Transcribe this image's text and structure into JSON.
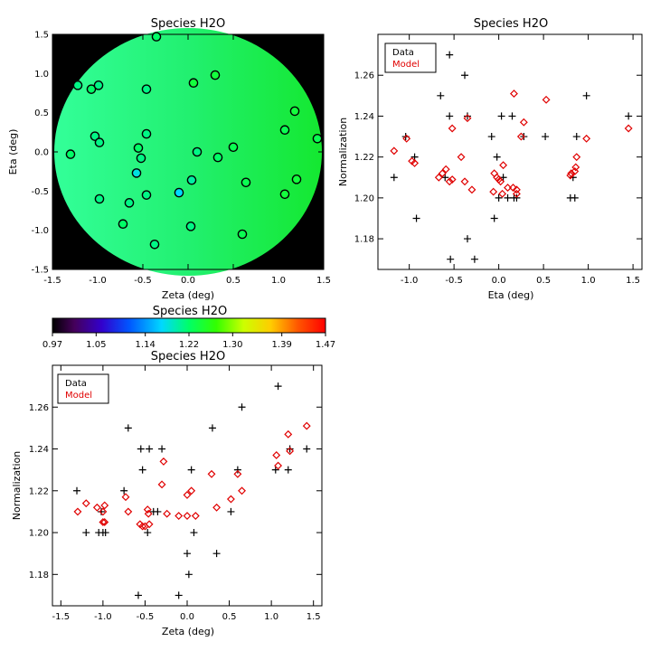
{
  "chart_data": [
    {
      "type": "scatter",
      "title": "Species H2O",
      "xlabel": "Zeta (deg)",
      "ylabel": "Eta (deg)",
      "xlim": [
        -1.5,
        1.5
      ],
      "ylim": [
        -1.5,
        1.5
      ],
      "xticks": [
        "-1.5",
        "-1.0",
        "-0.5",
        "0.0",
        "0.5",
        "1.0",
        "1.5"
      ],
      "yticks": [
        "-1.5",
        "-1.0",
        "-0.5",
        "0.0",
        "0.5",
        "1.0",
        "1.5"
      ],
      "map_value_range": [
        1.18,
        1.26
      ],
      "points": [
        {
          "x": -0.35,
          "y": 1.47,
          "v": 1.22
        },
        {
          "x": -1.22,
          "y": 0.85,
          "v": 1.21
        },
        {
          "x": -1.07,
          "y": 0.8,
          "v": 1.22
        },
        {
          "x": -0.99,
          "y": 0.85,
          "v": 1.21
        },
        {
          "x": -0.46,
          "y": 0.8,
          "v": 1.21
        },
        {
          "x": 0.06,
          "y": 0.88,
          "v": 1.24
        },
        {
          "x": 0.3,
          "y": 0.98,
          "v": 1.24
        },
        {
          "x": 1.18,
          "y": 0.52,
          "v": 1.24
        },
        {
          "x": 1.07,
          "y": 0.28,
          "v": 1.23
        },
        {
          "x": 1.43,
          "y": 0.17,
          "v": 1.23
        },
        {
          "x": -1.03,
          "y": 0.2,
          "v": 1.21
        },
        {
          "x": -0.98,
          "y": 0.12,
          "v": 1.21
        },
        {
          "x": -0.46,
          "y": 0.23,
          "v": 1.21
        },
        {
          "x": -0.55,
          "y": 0.05,
          "v": 1.22
        },
        {
          "x": -1.3,
          "y": -0.03,
          "v": 1.22
        },
        {
          "x": -0.52,
          "y": -0.08,
          "v": 1.21
        },
        {
          "x": 0.1,
          "y": 0.0,
          "v": 1.21
        },
        {
          "x": 0.33,
          "y": -0.07,
          "v": 1.22
        },
        {
          "x": 0.5,
          "y": 0.06,
          "v": 1.23
        },
        {
          "x": -0.57,
          "y": -0.27,
          "v": 1.18
        },
        {
          "x": 0.04,
          "y": -0.36,
          "v": 1.2
        },
        {
          "x": 0.64,
          "y": -0.39,
          "v": 1.23
        },
        {
          "x": 1.2,
          "y": -0.35,
          "v": 1.24
        },
        {
          "x": 1.07,
          "y": -0.54,
          "v": 1.24
        },
        {
          "x": -0.46,
          "y": -0.55,
          "v": 1.21
        },
        {
          "x": -0.1,
          "y": -0.52,
          "v": 1.17
        },
        {
          "x": -0.98,
          "y": -0.6,
          "v": 1.21
        },
        {
          "x": -0.65,
          "y": -0.65,
          "v": 1.21
        },
        {
          "x": -0.72,
          "y": -0.92,
          "v": 1.22
        },
        {
          "x": 0.03,
          "y": -0.95,
          "v": 1.21
        },
        {
          "x": 0.6,
          "y": -1.05,
          "v": 1.23
        },
        {
          "x": -0.37,
          "y": -1.18,
          "v": 1.21
        }
      ]
    },
    {
      "type": "scatter",
      "title": "Species H2O",
      "xlabel": "Eta (deg)",
      "ylabel": "Normalization",
      "xlim": [
        -1.35,
        1.6
      ],
      "ylim": [
        1.165,
        1.28
      ],
      "xticks": [
        "-1.0",
        "-0.5",
        "0.0",
        "0.5",
        "1.0",
        "1.5"
      ],
      "yticks": [
        "1.18",
        "1.20",
        "1.22",
        "1.24",
        "1.26"
      ],
      "legend": {
        "position": "top-left",
        "entries": [
          "Data",
          "Model"
        ]
      },
      "series": [
        {
          "name": "Data",
          "marker": "plus",
          "points": [
            [
              -1.17,
              1.21
            ],
            [
              -1.04,
              1.23
            ],
            [
              -0.94,
              1.22
            ],
            [
              -0.92,
              1.19
            ],
            [
              -0.65,
              1.25
            ],
            [
              -0.6,
              1.21
            ],
            [
              -0.55,
              1.24
            ],
            [
              -0.55,
              1.27
            ],
            [
              -0.54,
              1.17
            ],
            [
              -0.38,
              1.26
            ],
            [
              -0.35,
              1.24
            ],
            [
              -0.35,
              1.18
            ],
            [
              -0.27,
              1.17
            ],
            [
              -0.08,
              1.23
            ],
            [
              -0.05,
              1.19
            ],
            [
              -0.02,
              1.22
            ],
            [
              0.0,
              1.2
            ],
            [
              0.03,
              1.24
            ],
            [
              0.05,
              1.21
            ],
            [
              0.1,
              1.2
            ],
            [
              0.15,
              1.24
            ],
            [
              0.17,
              1.2
            ],
            [
              0.2,
              1.2
            ],
            [
              0.28,
              1.23
            ],
            [
              0.52,
              1.23
            ],
            [
              0.8,
              1.2
            ],
            [
              0.83,
              1.21
            ],
            [
              0.85,
              1.2
            ],
            [
              0.87,
              1.23
            ],
            [
              0.98,
              1.25
            ],
            [
              1.45,
              1.24
            ]
          ]
        },
        {
          "name": "Model",
          "marker": "diamond",
          "points": [
            [
              -1.17,
              1.223
            ],
            [
              -1.03,
              1.229
            ],
            [
              -0.97,
              1.218
            ],
            [
              -0.94,
              1.217
            ],
            [
              -0.67,
              1.21
            ],
            [
              -0.63,
              1.212
            ],
            [
              -0.59,
              1.214
            ],
            [
              -0.55,
              1.208
            ],
            [
              -0.52,
              1.209
            ],
            [
              -0.52,
              1.234
            ],
            [
              -0.42,
              1.22
            ],
            [
              -0.38,
              1.208
            ],
            [
              -0.35,
              1.239
            ],
            [
              -0.3,
              1.204
            ],
            [
              -0.06,
              1.203
            ],
            [
              -0.05,
              1.212
            ],
            [
              -0.02,
              1.21
            ],
            [
              0.0,
              1.209
            ],
            [
              0.02,
              1.208
            ],
            [
              0.04,
              1.202
            ],
            [
              0.05,
              1.216
            ],
            [
              0.1,
              1.205
            ],
            [
              0.16,
              1.205
            ],
            [
              0.17,
              1.251
            ],
            [
              0.2,
              1.204
            ],
            [
              0.2,
              1.202
            ],
            [
              0.25,
              1.23
            ],
            [
              0.28,
              1.237
            ],
            [
              0.53,
              1.248
            ],
            [
              0.8,
              1.211
            ],
            [
              0.81,
              1.212
            ],
            [
              0.85,
              1.213
            ],
            [
              0.86,
              1.215
            ],
            [
              0.87,
              1.22
            ],
            [
              0.98,
              1.229
            ],
            [
              1.45,
              1.234
            ]
          ]
        }
      ]
    },
    {
      "type": "colorbar",
      "title": "Species H2O",
      "tick_labels": [
        "0.97",
        "1.05",
        "1.14",
        "1.22",
        "1.30",
        "1.39",
        "1.47"
      ],
      "range": [
        0.97,
        1.47
      ]
    },
    {
      "type": "scatter",
      "title": "Species H2O",
      "xlabel": "Zeta (deg)",
      "ylabel": "Normalization",
      "xlim": [
        -1.6,
        1.6
      ],
      "ylim": [
        1.165,
        1.28
      ],
      "xticks": [
        "-1.5",
        "-1.0",
        "-0.5",
        "0.0",
        "0.5",
        "1.0",
        "1.5"
      ],
      "yticks": [
        "1.18",
        "1.20",
        "1.22",
        "1.24",
        "1.26"
      ],
      "legend": {
        "position": "top-left",
        "entries": [
          "Data",
          "Model"
        ]
      },
      "series": [
        {
          "name": "Data",
          "marker": "plus",
          "points": [
            [
              -1.31,
              1.22
            ],
            [
              -1.2,
              1.2
            ],
            [
              -1.05,
              1.2
            ],
            [
              -1.02,
              1.21
            ],
            [
              -1.0,
              1.2
            ],
            [
              -0.97,
              1.2
            ],
            [
              -0.75,
              1.22
            ],
            [
              -0.7,
              1.25
            ],
            [
              -0.58,
              1.17
            ],
            [
              -0.55,
              1.24
            ],
            [
              -0.53,
              1.23
            ],
            [
              -0.47,
              1.2
            ],
            [
              -0.45,
              1.24
            ],
            [
              -0.4,
              1.21
            ],
            [
              -0.35,
              1.21
            ],
            [
              -0.3,
              1.24
            ],
            [
              -0.1,
              1.17
            ],
            [
              0.0,
              1.19
            ],
            [
              0.02,
              1.18
            ],
            [
              0.05,
              1.23
            ],
            [
              0.08,
              1.2
            ],
            [
              0.3,
              1.25
            ],
            [
              0.35,
              1.19
            ],
            [
              0.52,
              1.21
            ],
            [
              0.6,
              1.23
            ],
            [
              0.65,
              1.26
            ],
            [
              1.05,
              1.23
            ],
            [
              1.08,
              1.27
            ],
            [
              1.2,
              1.23
            ],
            [
              1.22,
              1.24
            ],
            [
              1.42,
              1.24
            ]
          ]
        },
        {
          "name": "Model",
          "marker": "diamond",
          "points": [
            [
              -1.3,
              1.21
            ],
            [
              -1.2,
              1.214
            ],
            [
              -1.07,
              1.212
            ],
            [
              -1.0,
              1.21
            ],
            [
              -1.0,
              1.205
            ],
            [
              -0.98,
              1.213
            ],
            [
              -0.98,
              1.205
            ],
            [
              -0.73,
              1.217
            ],
            [
              -0.7,
              1.21
            ],
            [
              -0.56,
              1.204
            ],
            [
              -0.53,
              1.203
            ],
            [
              -0.5,
              1.203
            ],
            [
              -0.47,
              1.211
            ],
            [
              -0.46,
              1.209
            ],
            [
              -0.45,
              1.204
            ],
            [
              -0.3,
              1.223
            ],
            [
              -0.28,
              1.234
            ],
            [
              -0.24,
              1.209
            ],
            [
              -0.1,
              1.208
            ],
            [
              0.0,
              1.218
            ],
            [
              0.0,
              1.208
            ],
            [
              0.05,
              1.22
            ],
            [
              0.1,
              1.208
            ],
            [
              0.29,
              1.228
            ],
            [
              0.35,
              1.212
            ],
            [
              0.52,
              1.216
            ],
            [
              0.6,
              1.228
            ],
            [
              0.65,
              1.22
            ],
            [
              1.06,
              1.237
            ],
            [
              1.08,
              1.232
            ],
            [
              1.2,
              1.247
            ],
            [
              1.22,
              1.239
            ],
            [
              1.42,
              1.251
            ]
          ]
        }
      ]
    }
  ]
}
